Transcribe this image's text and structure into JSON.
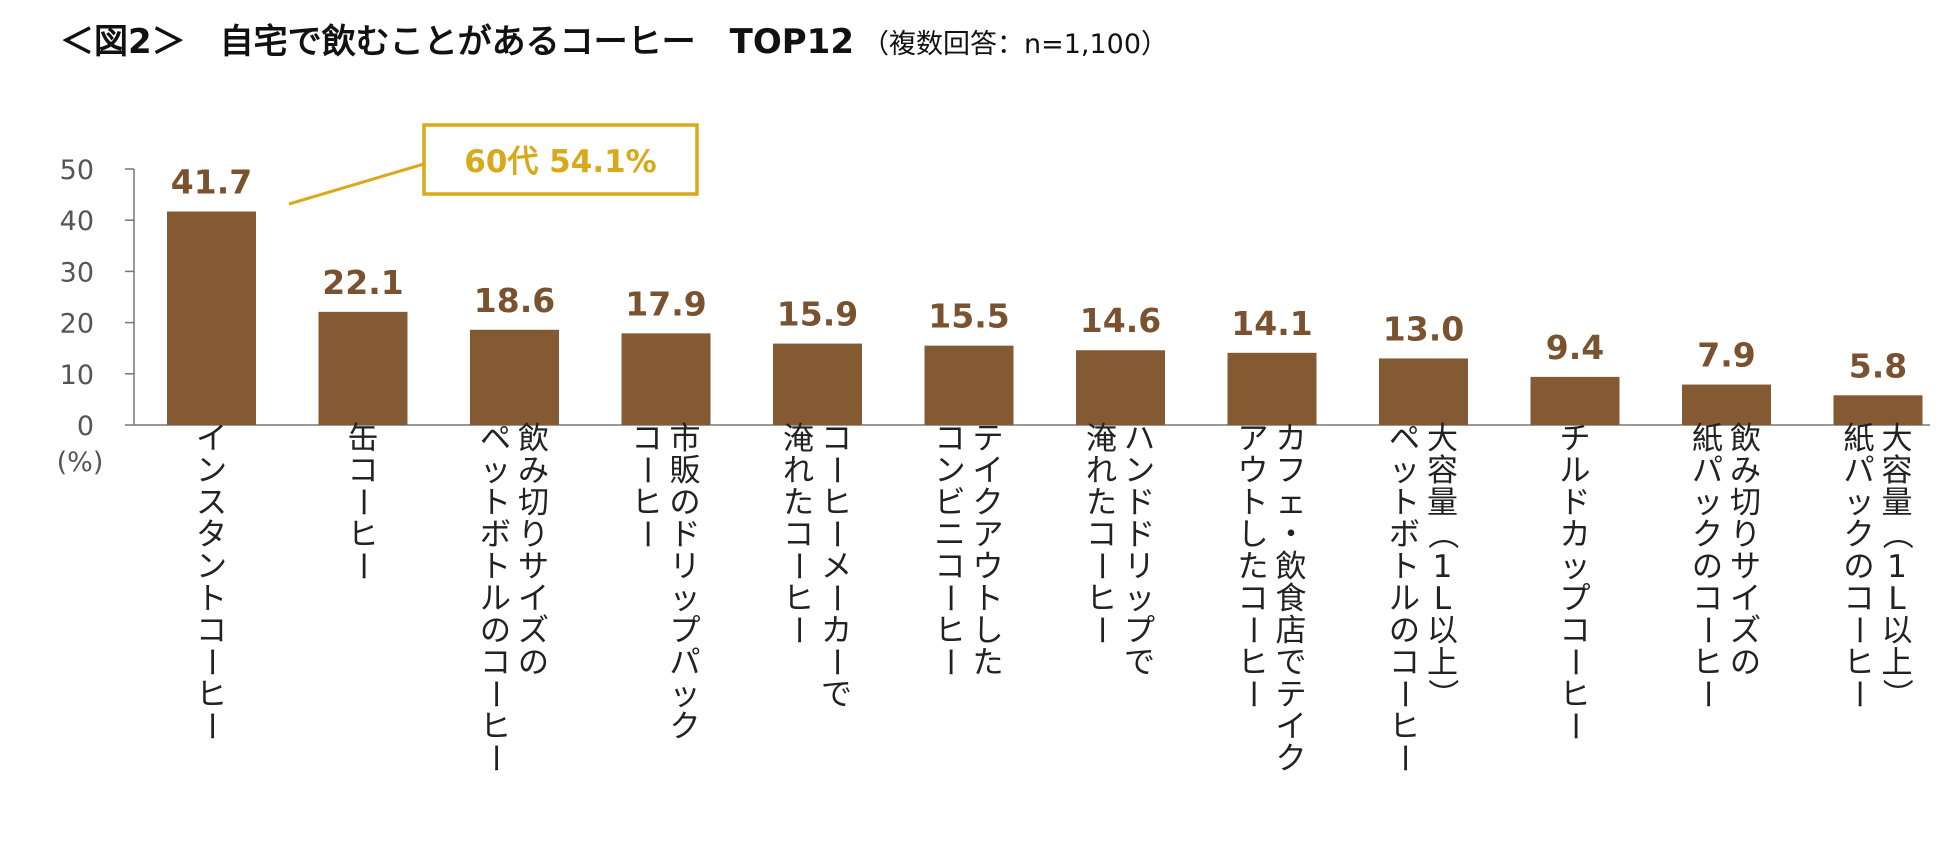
{
  "title": {
    "main": "＜図2＞　自宅で飲むことがあるコーヒー　TOP12",
    "note": "（複数回答：n=1,100）"
  },
  "chart_data": {
    "type": "bar",
    "title": "自宅で飲むことがあるコーヒー TOP12",
    "ylabel": "(%)",
    "ylim": [
      0,
      50
    ],
    "yticks": [
      0,
      10,
      20,
      30,
      40,
      50
    ],
    "grid": false,
    "bar_color": "#845a33",
    "label_color": "#7a5230",
    "categories": [
      [
        "インスタントコーヒー"
      ],
      [
        "缶コーヒー"
      ],
      [
        "飲み切りサイズの",
        "ペットボトルのコーヒー"
      ],
      [
        "市販のドリップパック",
        "コーヒー"
      ],
      [
        "コーヒーメーカーで",
        "淹れたコーヒー"
      ],
      [
        "テイクアウトした",
        "コンビニコーヒー"
      ],
      [
        "ハンドドリップで",
        "淹れたコーヒー"
      ],
      [
        "カフェ・飲食店でテイク",
        "アウトしたコーヒー"
      ],
      [
        "大容量（1L以上）",
        "ペットボトルのコーヒー"
      ],
      [
        "チルドカップコーヒー"
      ],
      [
        "飲み切りサイズの",
        "紙パックのコーヒー"
      ],
      [
        "大容量（1L以上）",
        "紙パックのコーヒー"
      ]
    ],
    "values": [
      41.7,
      22.1,
      18.6,
      17.9,
      15.9,
      15.5,
      14.6,
      14.1,
      13.0,
      9.4,
      7.9,
      5.8
    ],
    "value_labels": [
      "41.7",
      "22.1",
      "18.6",
      "17.9",
      "15.9",
      "15.5",
      "14.6",
      "14.1",
      "13.0",
      "9.4",
      "7.9",
      "5.8"
    ],
    "annotation": {
      "text": "60代  54.1%",
      "target_index": 0,
      "color": "#d8a91a"
    }
  }
}
